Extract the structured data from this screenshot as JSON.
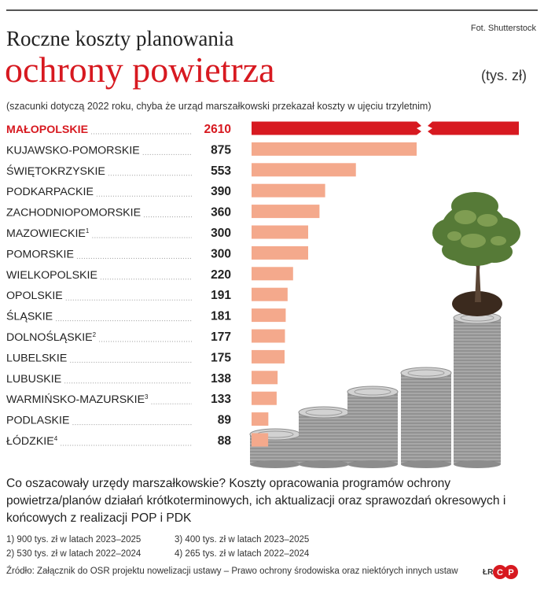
{
  "credit": "Fot. Shutterstock",
  "title_line1": "Roczne koszty planowania",
  "title_line2": "ochrony powietrza",
  "unit": "(tys. zł)",
  "note": "(szacunki dotyczą 2022 roku, chyba że urząd marszałkowski przekazał koszty w ujęciu trzyletnim)",
  "description": "Co oszacowały urzędy marszałkowskie? Koszty opracowania programów ochrony powietrza/planów działań krótkoterminowych, ich aktualizacji oraz sprawozdań okresowych i końcowych z realizacji POP i PDK",
  "footnotes": {
    "f1": "1)  900 tys. zł w latach 2023–2025",
    "f2": "2)  530 tys. zł w latach 2022–2024",
    "f3": "3)  400 tys. zł w latach 2023–2025",
    "f4": "4)  265 tys. zł w latach 2022–2024"
  },
  "source": "Źródło: Załącznik do OSR projektu nowelizacji ustawy – Prawo ochrony środowiska oraz niektórych innych ustaw",
  "author": "ŁR",
  "logo_text": "cp",
  "colors": {
    "highlight": "#d71920",
    "bar": "#f4a98c",
    "text": "#222222"
  },
  "chart_data": {
    "type": "bar",
    "orientation": "horizontal",
    "highlight_category": "MAŁOPOLSKIE",
    "axis_break": true,
    "categories": [
      "MAŁOPOLSKIE",
      "KUJAWSKO-POMORSKIE",
      "ŚWIĘTOKRZYSKIE",
      "PODKARPACKIE",
      "ZACHODNIOPOMORSKIE",
      "MAZOWIECKIE",
      "POMORSKIE",
      "WIELKOPOLSKIE",
      "OPOLSKIE",
      "ŚLĄSKIE",
      "DOLNOŚLĄSKIE",
      "LUBELSKIE",
      "LUBUSKIE",
      "WARMIŃSKO-MAZURSKIE",
      "PODLASKIE",
      "ŁÓDZKIE"
    ],
    "footnote_marks": [
      "",
      "",
      "",
      "",
      "",
      "1",
      "",
      "",
      "",
      "",
      "2",
      "",
      "",
      "3",
      "",
      "4"
    ],
    "values": [
      2610,
      875,
      553,
      390,
      360,
      300,
      300,
      220,
      191,
      181,
      177,
      175,
      138,
      133,
      89,
      88
    ],
    "value_labels": [
      "2610",
      "875",
      "553",
      "390",
      "360",
      "300",
      "300",
      "220",
      "191",
      "181",
      "177",
      "175",
      "138",
      "133",
      "89",
      "88"
    ]
  }
}
